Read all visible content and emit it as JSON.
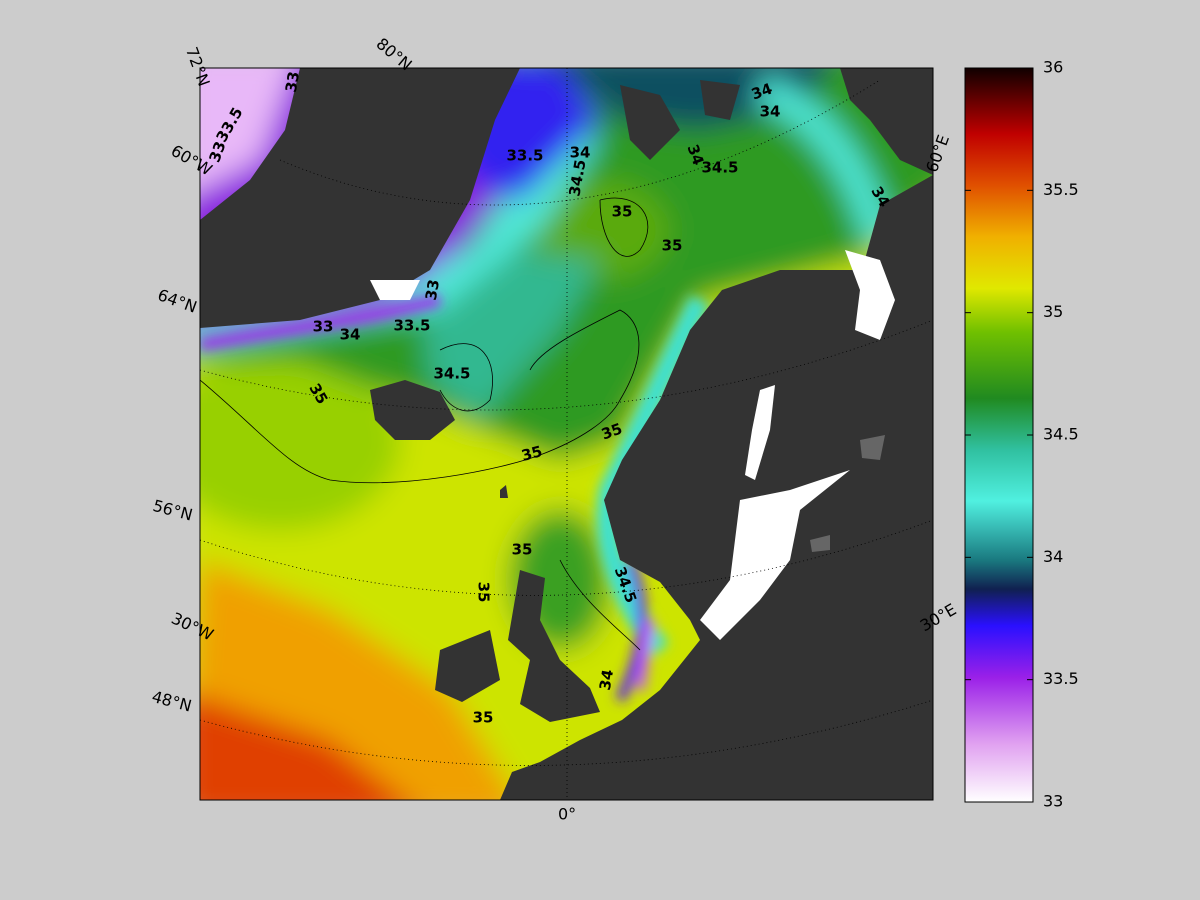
{
  "map": {
    "grid_labels": [
      "72°N",
      "80°N",
      "60°W",
      "64°N",
      "56°N",
      "30°W",
      "48°N",
      "0°",
      "60°E",
      "30°E"
    ],
    "contour_labels": [
      33,
      33.5,
      33,
      33.5,
      34,
      34.5,
      34,
      34,
      34,
      34.5,
      34,
      35,
      35,
      33,
      33,
      34,
      33.5,
      34.5,
      35,
      35,
      35,
      35,
      35,
      34.5,
      34,
      35
    ],
    "colorbar": {
      "lim": [
        33,
        36
      ],
      "ticks": [
        33,
        33.5,
        34,
        34.5,
        35,
        35.5,
        36
      ]
    }
  }
}
